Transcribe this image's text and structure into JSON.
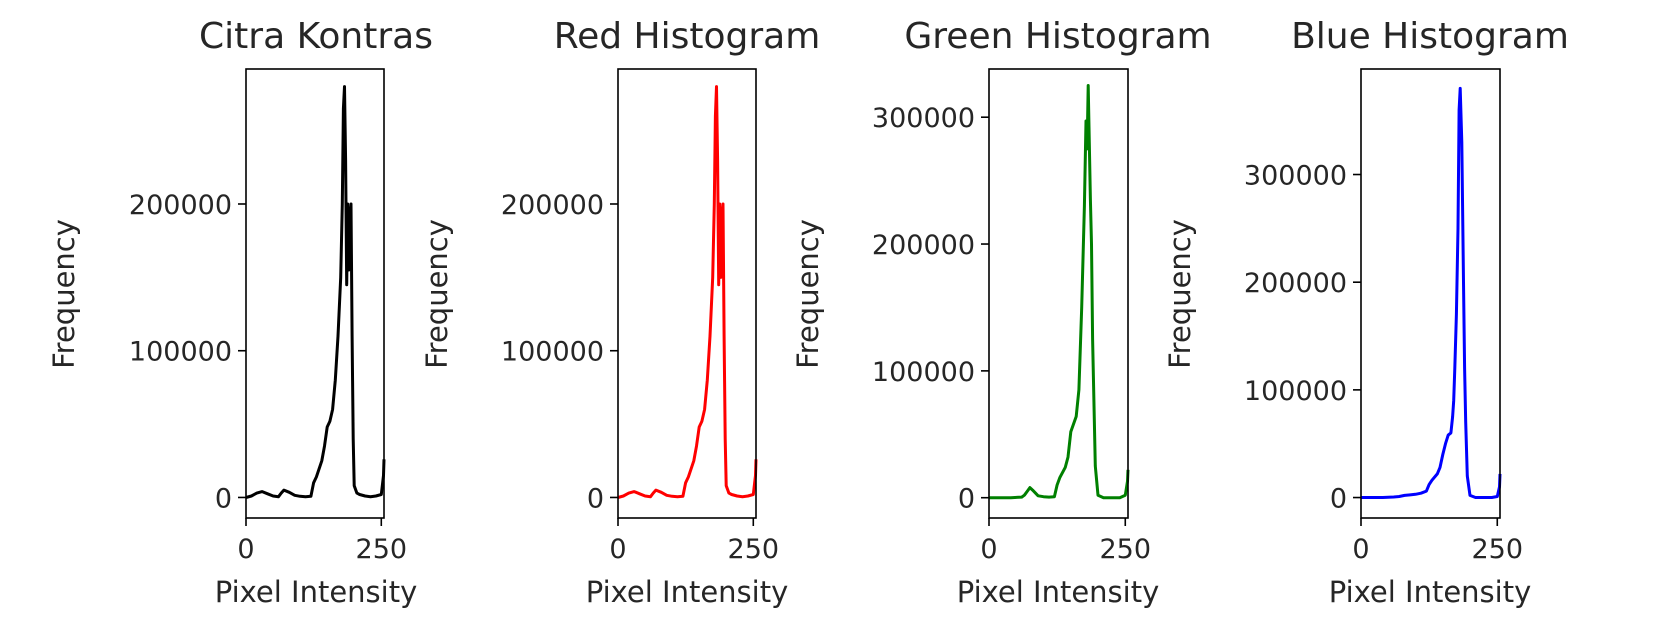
{
  "chart_data": [
    {
      "type": "line",
      "title": "Citra Kontras",
      "xlabel": "Pixel Intensity",
      "ylabel": "Frequency",
      "color": "#000000",
      "xlim": [
        0,
        255
      ],
      "ylim": [
        -14000,
        292000
      ],
      "xticks": [
        0,
        250
      ],
      "yticks": [
        0,
        100000,
        200000
      ],
      "grid": false,
      "series": [
        {
          "x": [
            0,
            10,
            20,
            30,
            40,
            50,
            60,
            65,
            70,
            80,
            90,
            100,
            110,
            120,
            125,
            130,
            140,
            145,
            150,
            155,
            160,
            165,
            170,
            175,
            178,
            180,
            182,
            184,
            186,
            188,
            190,
            192,
            194,
            196,
            198,
            200,
            205,
            210,
            220,
            230,
            240,
            250,
            254,
            255
          ],
          "values": [
            0,
            1000,
            3000,
            4000,
            2500,
            1000,
            500,
            3000,
            5000,
            3500,
            1500,
            800,
            500,
            800,
            10000,
            14000,
            25000,
            35000,
            48000,
            52000,
            60000,
            80000,
            110000,
            150000,
            200000,
            265000,
            280000,
            230000,
            145000,
            200000,
            155000,
            190000,
            200000,
            110000,
            40000,
            8000,
            3000,
            2000,
            1000,
            500,
            1000,
            2000,
            15000,
            26000
          ]
        }
      ]
    },
    {
      "type": "line",
      "title": "Red Histogram",
      "xlabel": "Pixel Intensity",
      "ylabel": "Frequency",
      "color": "#ff0000",
      "xlim": [
        0,
        255
      ],
      "ylim": [
        -14000,
        292000
      ],
      "xticks": [
        0,
        250
      ],
      "yticks": [
        0,
        100000,
        200000
      ],
      "grid": false,
      "series": [
        {
          "x": [
            0,
            10,
            20,
            30,
            40,
            50,
            60,
            65,
            70,
            80,
            90,
            100,
            110,
            120,
            125,
            130,
            140,
            145,
            150,
            155,
            160,
            165,
            170,
            175,
            178,
            180,
            182,
            184,
            186,
            188,
            190,
            192,
            194,
            196,
            198,
            200,
            205,
            210,
            220,
            230,
            240,
            250,
            254,
            255
          ],
          "values": [
            0,
            1000,
            3000,
            4000,
            2500,
            1000,
            500,
            3000,
            5000,
            3500,
            1500,
            800,
            500,
            800,
            10000,
            14000,
            25000,
            35000,
            48000,
            52000,
            60000,
            80000,
            110000,
            150000,
            200000,
            260000,
            280000,
            230000,
            145000,
            200000,
            150000,
            190000,
            200000,
            110000,
            40000,
            8000,
            3000,
            2000,
            1000,
            500,
            1000,
            2000,
            15000,
            26000
          ]
        }
      ]
    },
    {
      "type": "line",
      "title": "Green Histogram",
      "xlabel": "Pixel Intensity",
      "ylabel": "Frequency",
      "color": "#008000",
      "xlim": [
        0,
        255
      ],
      "ylim": [
        -16000,
        338000
      ],
      "xticks": [
        0,
        250
      ],
      "yticks": [
        0,
        100000,
        200000,
        300000
      ],
      "grid": false,
      "series": [
        {
          "x": [
            0,
            20,
            40,
            60,
            65,
            70,
            75,
            80,
            90,
            100,
            110,
            120,
            125,
            130,
            140,
            145,
            150,
            155,
            160,
            165,
            170,
            175,
            178,
            180,
            182,
            184,
            186,
            188,
            190,
            195,
            200,
            210,
            220,
            230,
            240,
            250,
            254,
            255
          ],
          "values": [
            0,
            0,
            0,
            500,
            2000,
            5000,
            8000,
            6000,
            1500,
            800,
            500,
            800,
            10000,
            16000,
            24000,
            32000,
            52000,
            58000,
            64000,
            85000,
            150000,
            230000,
            297000,
            275000,
            325000,
            280000,
            235000,
            200000,
            125000,
            25000,
            2000,
            0,
            0,
            0,
            0,
            2000,
            13000,
            22000
          ]
        }
      ]
    },
    {
      "type": "line",
      "title": "Blue Histogram",
      "xlabel": "Pixel Intensity",
      "ylabel": "Frequency",
      "color": "#0000ff",
      "xlim": [
        0,
        255
      ],
      "ylim": [
        -19000,
        398000
      ],
      "xticks": [
        0,
        250
      ],
      "yticks": [
        0,
        100000,
        200000,
        300000
      ],
      "grid": false,
      "series": [
        {
          "x": [
            0,
            20,
            40,
            60,
            70,
            80,
            90,
            100,
            110,
            120,
            125,
            130,
            140,
            145,
            150,
            155,
            160,
            165,
            168,
            170,
            172,
            175,
            178,
            180,
            182,
            185,
            188,
            190,
            192,
            195,
            200,
            210,
            220,
            230,
            240,
            250,
            254,
            255
          ],
          "values": [
            0,
            0,
            0,
            500,
            1000,
            2000,
            2500,
            3000,
            4000,
            6000,
            12000,
            16000,
            22000,
            28000,
            40000,
            50000,
            58000,
            60000,
            75000,
            90000,
            120000,
            170000,
            250000,
            360000,
            380000,
            330000,
            200000,
            120000,
            70000,
            20000,
            2000,
            0,
            0,
            0,
            0,
            1000,
            10000,
            22000
          ]
        }
      ]
    }
  ]
}
